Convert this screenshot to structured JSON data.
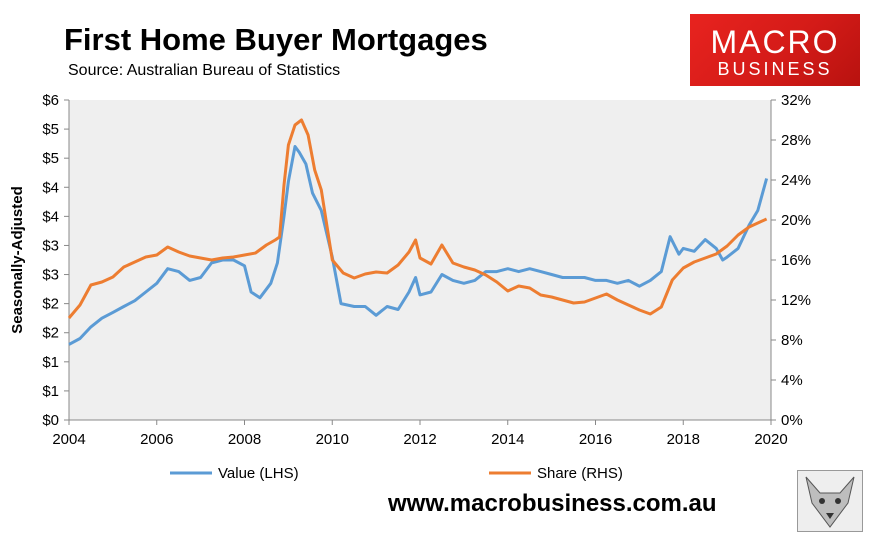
{
  "title": "First Home Buyer Mortgages",
  "subtitle": "Source: Australian Bureau of Statistics",
  "logo": {
    "line1": "MACRO",
    "line2": "BUSINESS"
  },
  "footer_url": "www.macrobusiness.com.au",
  "colors": {
    "value": "#5b9bd5",
    "share": "#ed7d31",
    "plot_bg": "#efefef",
    "logo_bg": "#e0201c"
  },
  "chart_data": {
    "type": "line",
    "title": "First Home Buyer Mortgages",
    "subtitle": "Source: Australian Bureau of Statistics",
    "ylabel": "Seasonally-Adjusted",
    "xlim": [
      2004,
      2020
    ],
    "x_ticks": [
      "2004",
      "2006",
      "2008",
      "2010",
      "2012",
      "2014",
      "2016",
      "2018",
      "2020"
    ],
    "y_left_ticks": [
      "$0",
      "$1",
      "$1",
      "$2",
      "$2",
      "$3",
      "$3",
      "$4",
      "$4",
      "$5",
      "$5",
      "$6"
    ],
    "y_left_lim": [
      0,
      5.5
    ],
    "y_right_ticks": [
      "0%",
      "4%",
      "8%",
      "12%",
      "16%",
      "20%",
      "24%",
      "28%",
      "32%"
    ],
    "y_right_lim": [
      0,
      32
    ],
    "grid": false,
    "legend_position": "bottom",
    "series": [
      {
        "name": "Value (LHS)",
        "axis": "left",
        "points": [
          [
            2004.0,
            1.3
          ],
          [
            2004.25,
            1.4
          ],
          [
            2004.5,
            1.6
          ],
          [
            2004.75,
            1.75
          ],
          [
            2005.0,
            1.85
          ],
          [
            2005.25,
            1.95
          ],
          [
            2005.5,
            2.05
          ],
          [
            2005.75,
            2.2
          ],
          [
            2006.0,
            2.35
          ],
          [
            2006.25,
            2.6
          ],
          [
            2006.5,
            2.55
          ],
          [
            2006.75,
            2.4
          ],
          [
            2007.0,
            2.45
          ],
          [
            2007.25,
            2.7
          ],
          [
            2007.5,
            2.75
          ],
          [
            2007.75,
            2.75
          ],
          [
            2008.0,
            2.65
          ],
          [
            2008.15,
            2.2
          ],
          [
            2008.35,
            2.1
          ],
          [
            2008.6,
            2.35
          ],
          [
            2008.75,
            2.7
          ],
          [
            2008.9,
            3.5
          ],
          [
            2009.0,
            4.1
          ],
          [
            2009.15,
            4.7
          ],
          [
            2009.25,
            4.6
          ],
          [
            2009.4,
            4.4
          ],
          [
            2009.55,
            3.9
          ],
          [
            2009.75,
            3.6
          ],
          [
            2010.0,
            2.8
          ],
          [
            2010.2,
            2.0
          ],
          [
            2010.5,
            1.95
          ],
          [
            2010.75,
            1.95
          ],
          [
            2011.0,
            1.8
          ],
          [
            2011.25,
            1.95
          ],
          [
            2011.5,
            1.9
          ],
          [
            2011.75,
            2.2
          ],
          [
            2011.9,
            2.45
          ],
          [
            2012.0,
            2.15
          ],
          [
            2012.25,
            2.2
          ],
          [
            2012.5,
            2.5
          ],
          [
            2012.75,
            2.4
          ],
          [
            2013.0,
            2.35
          ],
          [
            2013.25,
            2.4
          ],
          [
            2013.5,
            2.55
          ],
          [
            2013.75,
            2.55
          ],
          [
            2014.0,
            2.6
          ],
          [
            2014.25,
            2.55
          ],
          [
            2014.5,
            2.6
          ],
          [
            2014.75,
            2.55
          ],
          [
            2015.0,
            2.5
          ],
          [
            2015.25,
            2.45
          ],
          [
            2015.5,
            2.45
          ],
          [
            2015.75,
            2.45
          ],
          [
            2016.0,
            2.4
          ],
          [
            2016.25,
            2.4
          ],
          [
            2016.5,
            2.35
          ],
          [
            2016.75,
            2.4
          ],
          [
            2017.0,
            2.3
          ],
          [
            2017.25,
            2.4
          ],
          [
            2017.5,
            2.55
          ],
          [
            2017.7,
            3.15
          ],
          [
            2017.9,
            2.85
          ],
          [
            2018.0,
            2.95
          ],
          [
            2018.25,
            2.9
          ],
          [
            2018.5,
            3.1
          ],
          [
            2018.75,
            2.95
          ],
          [
            2018.9,
            2.75
          ],
          [
            2019.0,
            2.8
          ],
          [
            2019.25,
            2.95
          ],
          [
            2019.5,
            3.35
          ],
          [
            2019.7,
            3.6
          ],
          [
            2019.9,
            4.15
          ]
        ]
      },
      {
        "name": "Share (RHS)",
        "axis": "right",
        "points": [
          [
            2004.0,
            10.2
          ],
          [
            2004.25,
            11.5
          ],
          [
            2004.5,
            13.5
          ],
          [
            2004.75,
            13.8
          ],
          [
            2005.0,
            14.3
          ],
          [
            2005.25,
            15.3
          ],
          [
            2005.5,
            15.8
          ],
          [
            2005.75,
            16.3
          ],
          [
            2006.0,
            16.5
          ],
          [
            2006.25,
            17.3
          ],
          [
            2006.5,
            16.8
          ],
          [
            2006.75,
            16.4
          ],
          [
            2007.0,
            16.2
          ],
          [
            2007.25,
            16.0
          ],
          [
            2007.5,
            16.2
          ],
          [
            2007.75,
            16.3
          ],
          [
            2008.0,
            16.5
          ],
          [
            2008.25,
            16.7
          ],
          [
            2008.5,
            17.5
          ],
          [
            2008.7,
            18.0
          ],
          [
            2008.8,
            18.3
          ],
          [
            2008.9,
            23.5
          ],
          [
            2009.0,
            27.5
          ],
          [
            2009.15,
            29.5
          ],
          [
            2009.3,
            30.0
          ],
          [
            2009.45,
            28.5
          ],
          [
            2009.6,
            25.0
          ],
          [
            2009.75,
            23.0
          ],
          [
            2010.0,
            16.0
          ],
          [
            2010.25,
            14.7
          ],
          [
            2010.5,
            14.2
          ],
          [
            2010.75,
            14.6
          ],
          [
            2011.0,
            14.8
          ],
          [
            2011.25,
            14.7
          ],
          [
            2011.5,
            15.5
          ],
          [
            2011.75,
            16.8
          ],
          [
            2011.9,
            18.0
          ],
          [
            2012.0,
            16.2
          ],
          [
            2012.25,
            15.6
          ],
          [
            2012.5,
            17.5
          ],
          [
            2012.75,
            15.7
          ],
          [
            2013.0,
            15.3
          ],
          [
            2013.25,
            15.0
          ],
          [
            2013.5,
            14.5
          ],
          [
            2013.75,
            13.8
          ],
          [
            2014.0,
            12.9
          ],
          [
            2014.25,
            13.4
          ],
          [
            2014.5,
            13.2
          ],
          [
            2014.75,
            12.5
          ],
          [
            2015.0,
            12.3
          ],
          [
            2015.25,
            12.0
          ],
          [
            2015.5,
            11.7
          ],
          [
            2015.75,
            11.8
          ],
          [
            2016.0,
            12.2
          ],
          [
            2016.25,
            12.6
          ],
          [
            2016.5,
            12.0
          ],
          [
            2016.75,
            11.5
          ],
          [
            2017.0,
            11.0
          ],
          [
            2017.25,
            10.6
          ],
          [
            2017.5,
            11.3
          ],
          [
            2017.75,
            14.0
          ],
          [
            2018.0,
            15.2
          ],
          [
            2018.25,
            15.8
          ],
          [
            2018.5,
            16.2
          ],
          [
            2018.75,
            16.6
          ],
          [
            2019.0,
            17.4
          ],
          [
            2019.25,
            18.5
          ],
          [
            2019.5,
            19.3
          ],
          [
            2019.75,
            19.8
          ],
          [
            2019.9,
            20.1
          ]
        ]
      }
    ]
  }
}
